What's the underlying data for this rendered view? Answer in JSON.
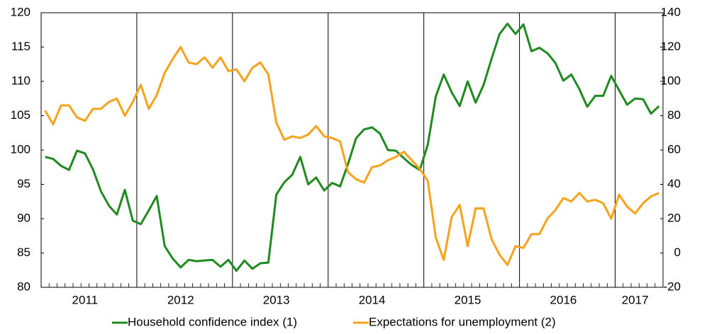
{
  "chart_data": {
    "type": "line",
    "categories": [
      null,
      null,
      null,
      null,
      null,
      "2011",
      null,
      null,
      null,
      null,
      null,
      null,
      null,
      null,
      null,
      null,
      null,
      "2012",
      null,
      null,
      null,
      null,
      null,
      null,
      null,
      null,
      null,
      null,
      null,
      "2013",
      null,
      null,
      null,
      null,
      null,
      null,
      null,
      null,
      null,
      null,
      null,
      "2014",
      null,
      null,
      null,
      null,
      null,
      null,
      null,
      null,
      null,
      null,
      null,
      "2015",
      null,
      null,
      null,
      null,
      null,
      null,
      null,
      null,
      null,
      null,
      null,
      "2016",
      null,
      null,
      null,
      null,
      null,
      null,
      null,
      null,
      "2017",
      null,
      null,
      null
    ],
    "series": [
      {
        "name": "Household confidence index (1)",
        "color": "#1f8a1f",
        "axis": "y",
        "values": [
          99,
          98.7,
          97.7,
          97.1,
          99.9,
          99.5,
          97.2,
          94,
          91.9,
          90.6,
          94.2,
          89.7,
          89.2,
          91.2,
          93.3,
          86,
          84.2,
          82.9,
          84,
          83.8,
          83.9,
          84,
          83,
          84,
          82.4,
          83.9,
          82.7,
          83.5,
          83.6,
          93.5,
          95.3,
          96.4,
          99,
          95,
          96,
          94.1,
          95.2,
          94.7,
          98,
          101.7,
          103,
          103.3,
          102.4,
          100,
          99.9,
          98.8,
          97.8,
          97.1,
          100.8,
          107.8,
          111,
          108.4,
          106.4,
          110,
          106.9,
          109.5,
          113.3,
          116.9,
          118.4,
          116.9,
          118.3,
          114.4,
          114.9,
          114.1,
          112.7,
          110.1,
          111,
          108.9,
          106.3,
          107.9,
          107.9,
          110.8,
          108.7,
          106.6,
          107.5,
          107.4,
          105.3,
          106.4
        ]
      },
      {
        "name": "Expectations for unemployment (2)",
        "color": "#f7a21b",
        "axis": "y2",
        "values": [
          83,
          75,
          86,
          86,
          79,
          77,
          84,
          84,
          88,
          90,
          80,
          88,
          98,
          84,
          92,
          105,
          113,
          120,
          111,
          110,
          114,
          108,
          114,
          106,
          107,
          100,
          108,
          111,
          104,
          76,
          66,
          68,
          67,
          69,
          74,
          68,
          67,
          65,
          47,
          43,
          41,
          50,
          51,
          54,
          56,
          59,
          54,
          49,
          42,
          9,
          -4,
          21,
          28,
          4,
          26,
          26,
          8,
          -1,
          -7,
          4,
          3,
          11,
          11,
          20,
          25,
          32,
          30,
          35,
          30,
          31,
          29,
          20,
          34,
          27,
          23,
          29,
          33,
          35
        ]
      }
    ],
    "ylim": [
      80,
      120
    ],
    "yticks": [
      80,
      85,
      90,
      95,
      100,
      105,
      110,
      115,
      120
    ],
    "y2lim": [
      -20,
      140
    ],
    "y2ticks": [
      -20,
      0,
      20,
      40,
      60,
      80,
      100,
      120,
      140
    ],
    "legend": "bottom"
  }
}
